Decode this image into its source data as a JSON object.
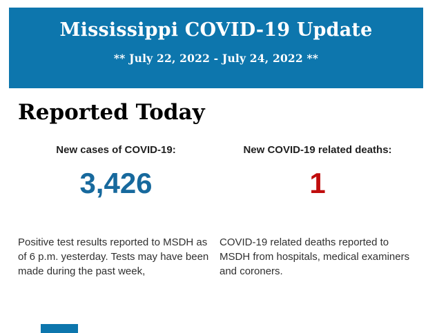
{
  "banner": {
    "title": "Mississippi COVID-19 Update",
    "date_range": "** July 22, 2022 - July 24, 2022 **",
    "background_color": "#0d76ad",
    "text_color": "#ffffff"
  },
  "section": {
    "heading": "Reported Today"
  },
  "stats": {
    "cases": {
      "label": "New cases of COVID-19:",
      "value": "3,426",
      "value_color": "#17699d",
      "description": "Positive test results reported to MSDH as of 6 p.m. yesterday. Tests may have been made during the past week,"
    },
    "deaths": {
      "label": "New COVID-19 related deaths:",
      "value": "1",
      "value_color": "#c00d0d",
      "description": "COVID-19 related deaths reported to MSDH from hospitals, medical examiners and coroners."
    }
  },
  "footer": {
    "next_section_fragment_color": "#0d76ad"
  }
}
